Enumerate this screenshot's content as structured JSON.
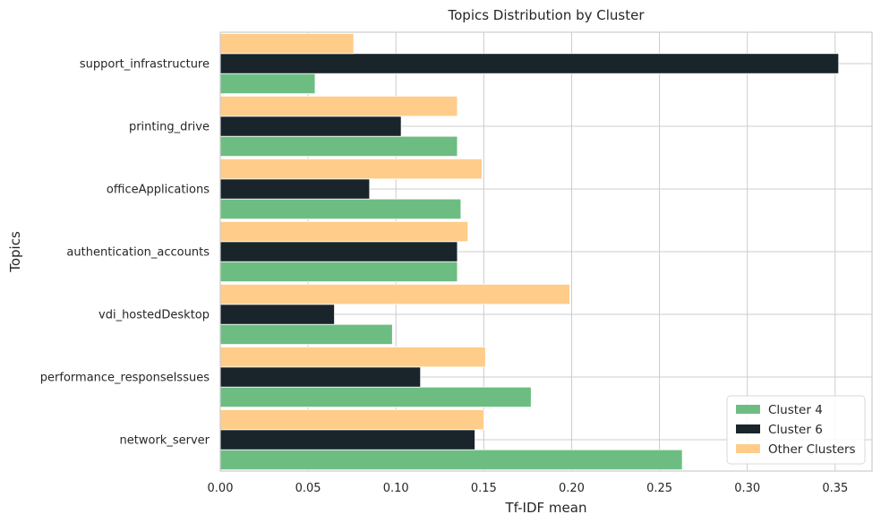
{
  "chart_data": {
    "type": "bar",
    "orientation": "horizontal",
    "title": "Topics Distribution by Cluster",
    "xlabel": "Tf-IDF mean",
    "ylabel": "Topics",
    "xlim": [
      0,
      0.371
    ],
    "xticks": [
      0.0,
      0.05,
      0.1,
      0.15,
      0.2,
      0.25,
      0.3,
      0.35
    ],
    "xtick_labels": [
      "0.00",
      "0.05",
      "0.10",
      "0.15",
      "0.20",
      "0.25",
      "0.30",
      "0.35"
    ],
    "grid": true,
    "legend_position": "bottom-right",
    "categories": [
      "network_server",
      "performance_responseIssues",
      "vdi_hostedDesktop",
      "authentication_accounts",
      "officeApplications",
      "printing_drive",
      "support_infrastructure"
    ],
    "series": [
      {
        "name": "Cluster 4",
        "color": "#6dbd83",
        "values": [
          0.263,
          0.177,
          0.098,
          0.135,
          0.137,
          0.135,
          0.054
        ]
      },
      {
        "name": "Cluster 6",
        "color": "#19242b",
        "values": [
          0.145,
          0.114,
          0.065,
          0.135,
          0.085,
          0.103,
          0.352
        ]
      },
      {
        "name": "Other Clusters",
        "color": "#ffcc8a",
        "values": [
          0.15,
          0.151,
          0.199,
          0.141,
          0.149,
          0.135,
          0.076
        ]
      }
    ]
  }
}
